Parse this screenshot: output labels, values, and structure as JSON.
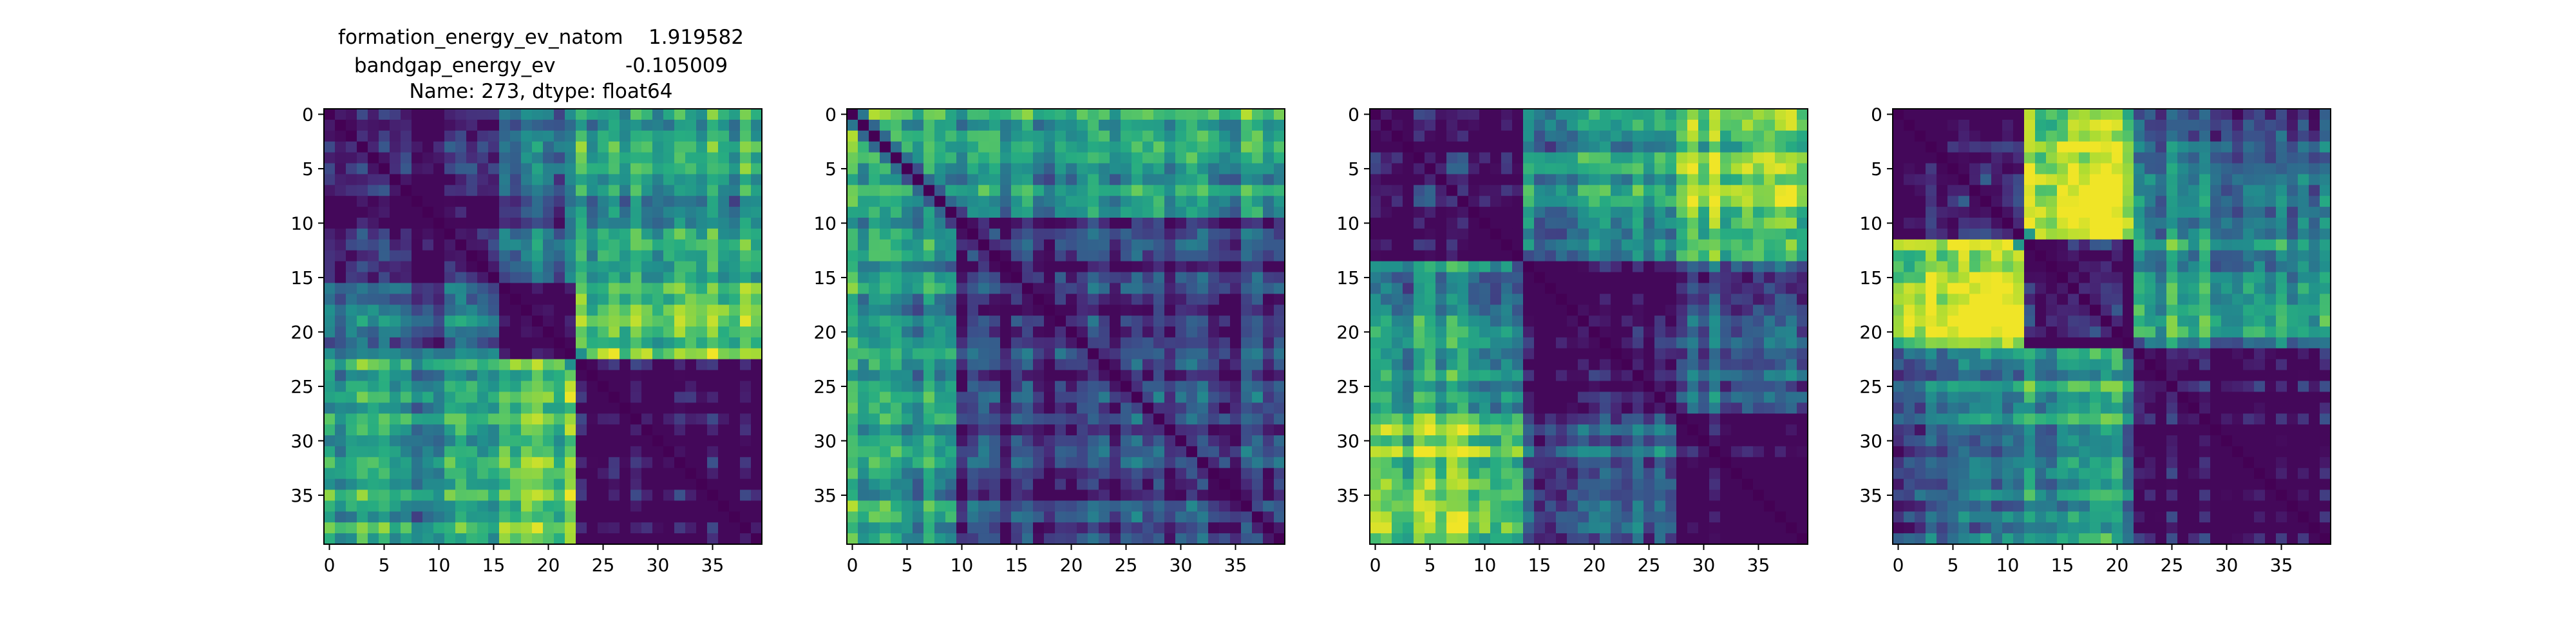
{
  "title_lines": [
    "formation_energy_ev_natom    1.919582",
    "bandgap_energy_ev           -0.105009",
    "Name: 273, dtype: float64"
  ],
  "chart_data": [
    {
      "type": "heatmap",
      "colormap": "viridis",
      "rows": 40,
      "cols": 40,
      "value_range": [
        0,
        1
      ],
      "xticks": [
        0,
        5,
        10,
        15,
        20,
        25,
        30,
        35
      ],
      "yticks": [
        0,
        5,
        10,
        15,
        20,
        25,
        30,
        35
      ],
      "cluster_boundaries": [
        0,
        16,
        23,
        40
      ],
      "cluster_levels": [
        [
          0.0,
          0.35,
          0.55
        ],
        [
          0.35,
          0.0,
          0.8
        ],
        [
          0.55,
          0.8,
          0.0
        ]
      ]
    },
    {
      "type": "heatmap",
      "colormap": "viridis",
      "rows": 40,
      "cols": 40,
      "value_range": [
        0,
        1
      ],
      "xticks": [
        0,
        5,
        10,
        15,
        20,
        25,
        30,
        35
      ],
      "yticks": [
        0,
        5,
        10,
        15,
        20,
        25,
        30,
        35
      ],
      "cluster_boundaries": [
        0,
        10,
        40
      ],
      "cluster_levels": [
        [
          0.65,
          0.55
        ],
        [
          0.55,
          0.15
        ]
      ]
    },
    {
      "type": "heatmap",
      "colormap": "viridis",
      "rows": 40,
      "cols": 40,
      "value_range": [
        0,
        1
      ],
      "xticks": [
        0,
        5,
        10,
        15,
        20,
        25,
        30,
        35
      ],
      "yticks": [
        0,
        5,
        10,
        15,
        20,
        25,
        30,
        35
      ],
      "cluster_boundaries": [
        0,
        14,
        28,
        40
      ],
      "cluster_levels": [
        [
          0.0,
          0.5,
          0.8
        ],
        [
          0.5,
          0.0,
          0.3
        ],
        [
          0.8,
          0.3,
          0.0
        ]
      ]
    },
    {
      "type": "heatmap",
      "colormap": "viridis",
      "rows": 40,
      "cols": 40,
      "value_range": [
        0,
        1
      ],
      "xticks": [
        0,
        5,
        10,
        15,
        20,
        25,
        30,
        35
      ],
      "yticks": [
        0,
        5,
        10,
        15,
        20,
        25,
        30,
        35
      ],
      "cluster_boundaries": [
        0,
        12,
        22,
        40
      ],
      "cluster_levels": [
        [
          0.0,
          0.85,
          0.35
        ],
        [
          0.85,
          0.0,
          0.5
        ],
        [
          0.35,
          0.5,
          0.0
        ]
      ]
    }
  ]
}
